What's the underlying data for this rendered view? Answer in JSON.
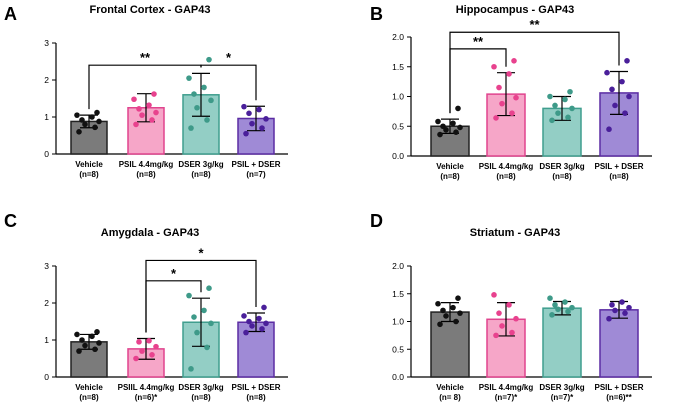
{
  "chart_data": [
    {
      "type": "bar",
      "panel_letter": "A",
      "title": "Frontal Cortex - GAP43",
      "ylim": [
        0,
        3
      ],
      "yticks": [
        "0",
        "1",
        "2",
        "3"
      ],
      "categories": [
        "Vehicle",
        "PSIL 4.4mg/kg",
        "DSER 3g/kg",
        "PSIL + DSER"
      ],
      "ns": [
        "(n=8)",
        "(n=8)",
        "(n=8)",
        "(n=7)"
      ],
      "values": [
        0.88,
        1.25,
        1.6,
        0.96
      ],
      "errors": [
        0.17,
        0.38,
        0.58,
        0.33
      ],
      "points": [
        [
          0.6,
          0.72,
          0.8,
          0.88,
          0.92,
          1.0,
          1.05,
          1.12
        ],
        [
          0.8,
          0.92,
          1.05,
          1.12,
          1.22,
          1.32,
          1.48,
          1.62
        ],
        [
          0.7,
          0.92,
          1.25,
          1.45,
          1.62,
          1.8,
          2.05,
          2.55
        ],
        [
          0.55,
          0.7,
          0.82,
          0.95,
          1.1,
          1.2,
          1.28
        ]
      ],
      "significance": [
        {
          "from": 0,
          "to": 2,
          "label": "**",
          "y": 2.4
        },
        {
          "from": 2,
          "to": 3,
          "label": "*",
          "y": 2.4
        }
      ]
    },
    {
      "type": "bar",
      "panel_letter": "B",
      "title": "Hippocampus - GAP43",
      "ylim": [
        0,
        2
      ],
      "yticks": [
        "0.0",
        "0.5",
        "1.0",
        "1.5",
        "2.0"
      ],
      "categories": [
        "Vehicle",
        "PSIL 4.4mg/kg",
        "DSER 3g/kg",
        "PSIL + DSER"
      ],
      "ns": [
        "(n=8)",
        "(n=8)",
        "(n=8)",
        "(n=8)"
      ],
      "values": [
        0.5,
        1.04,
        0.8,
        1.06
      ],
      "errors": [
        0.12,
        0.36,
        0.2,
        0.36
      ],
      "points": [
        [
          0.36,
          0.4,
          0.44,
          0.48,
          0.5,
          0.55,
          0.58,
          0.8
        ],
        [
          0.64,
          0.72,
          0.88,
          0.98,
          1.15,
          1.38,
          1.5,
          1.6
        ],
        [
          0.6,
          0.65,
          0.72,
          0.8,
          0.85,
          0.95,
          1.0,
          1.08
        ],
        [
          0.45,
          0.72,
          0.85,
          1.0,
          1.12,
          1.25,
          1.4,
          1.6
        ]
      ],
      "significance": [
        {
          "from": 0,
          "to": 1,
          "label": "**",
          "y": 1.8
        },
        {
          "from": 0,
          "to": 3,
          "label": "**",
          "y": 2.08
        }
      ]
    },
    {
      "type": "bar",
      "panel_letter": "C",
      "title": "Amygdala - GAP43",
      "ylim": [
        0,
        3
      ],
      "yticks": [
        "0",
        "1",
        "2",
        "3"
      ],
      "categories": [
        "Vehicle",
        "PSIIL 4.4mg/kg",
        "DSER 3g/kg",
        "PSIL + DSER"
      ],
      "ns": [
        "(n=8)",
        "(n=6)*",
        "(n=8)",
        "(n=8)"
      ],
      "values": [
        0.95,
        0.76,
        1.48,
        1.48
      ],
      "errors": [
        0.2,
        0.28,
        0.65,
        0.25
      ],
      "points": [
        [
          0.7,
          0.75,
          0.85,
          0.92,
          1.0,
          1.1,
          1.15,
          1.22
        ],
        [
          0.5,
          0.6,
          0.7,
          0.82,
          0.95,
          0.98
        ],
        [
          0.22,
          0.8,
          1.2,
          1.45,
          1.62,
          1.8,
          2.2,
          2.4
        ],
        [
          1.2,
          1.3,
          1.38,
          1.45,
          1.5,
          1.58,
          1.65,
          1.88
        ]
      ],
      "significance": [
        {
          "from": 1,
          "to": 2,
          "label": "*",
          "y": 2.6
        },
        {
          "from": 1,
          "to": 3,
          "label": "*",
          "y": 3.15
        }
      ]
    },
    {
      "type": "bar",
      "panel_letter": "D",
      "title": "Striatum - GAP43",
      "ylim": [
        0,
        2
      ],
      "yticks": [
        "0.0",
        "0.5",
        "1.0",
        "1.5",
        "2.0"
      ],
      "categories": [
        "Vehicle",
        "PSIL 4.4mg/kg",
        "DSER 3g/kg",
        "PSIL + DSER"
      ],
      "ns": [
        "(n= 8)",
        "(n=7)*",
        "(n=7)*",
        "(n=6)**"
      ],
      "values": [
        1.17,
        1.04,
        1.24,
        1.21
      ],
      "errors": [
        0.17,
        0.3,
        0.12,
        0.15
      ],
      "points": [
        [
          0.95,
          1.0,
          1.1,
          1.15,
          1.2,
          1.25,
          1.32,
          1.42
        ],
        [
          0.75,
          0.8,
          0.92,
          1.05,
          1.15,
          1.3,
          1.48
        ],
        [
          1.12,
          1.18,
          1.22,
          1.25,
          1.3,
          1.35,
          1.42
        ],
        [
          1.05,
          1.15,
          1.2,
          1.25,
          1.3,
          1.35
        ]
      ],
      "significance": []
    }
  ],
  "colors": {
    "bar_fills": [
      "#7b7b7b",
      "#f6a6c8",
      "#93cec5",
      "#9f8ad6"
    ],
    "bar_edges": [
      "#222222",
      "#e0448e",
      "#3f9e8e",
      "#5b2ca3"
    ],
    "points": [
      "#111111",
      "#e8428e",
      "#3e9a89",
      "#4a1f9a"
    ]
  }
}
